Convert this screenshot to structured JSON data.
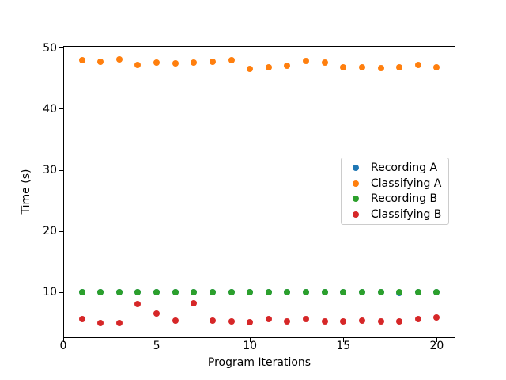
{
  "chart_data": {
    "type": "scatter",
    "title": "",
    "xlabel": "Program Iterations",
    "ylabel": "Time (s)",
    "xlim": [
      0,
      21
    ],
    "ylim": [
      2.5,
      50.4
    ],
    "grid": false,
    "legend_position": "center right",
    "xticks": [
      0,
      5,
      10,
      15,
      20
    ],
    "xtick_labels": [
      "0",
      "5",
      "10",
      "15",
      "20"
    ],
    "yticks": [
      10,
      20,
      30,
      40,
      50
    ],
    "ytick_labels": [
      "10",
      "20",
      "30",
      "40",
      "50"
    ],
    "x": [
      1,
      2,
      3,
      4,
      5,
      6,
      7,
      8,
      9,
      10,
      11,
      12,
      13,
      14,
      15,
      16,
      17,
      18,
      19,
      20
    ],
    "series": [
      {
        "name": "Recording A",
        "color": "#1f77b4",
        "values": [
          10.1,
          10.1,
          10.1,
          10.1,
          10.1,
          10.1,
          10.1,
          10.1,
          10.1,
          10.1,
          10.1,
          10.1,
          10.1,
          10.1,
          10.1,
          10.1,
          10.1,
          9.95,
          10.1,
          10.1
        ]
      },
      {
        "name": "Classifying A",
        "color": "#ff7f0e",
        "values": [
          48.0,
          47.7,
          48.2,
          47.3,
          47.6,
          47.5,
          47.6,
          47.7,
          48.0,
          46.6,
          46.9,
          47.1,
          47.9,
          47.6,
          46.9,
          46.8,
          46.7,
          46.9,
          47.3,
          46.9
        ]
      },
      {
        "name": "Recording B",
        "color": "#2ca02c",
        "values": [
          10.1,
          10.1,
          10.1,
          10.1,
          10.1,
          10.1,
          10.1,
          10.1,
          10.1,
          10.1,
          10.1,
          10.1,
          10.1,
          10.1,
          10.1,
          10.1,
          10.1,
          10.1,
          10.1,
          10.1
        ]
      },
      {
        "name": "Classifying B",
        "color": "#d62728",
        "values": [
          5.7,
          5.0,
          5.0,
          8.1,
          6.5,
          5.4,
          8.2,
          5.4,
          5.3,
          5.1,
          5.7,
          5.2,
          5.6,
          5.3,
          5.3,
          5.4,
          5.3,
          5.25,
          5.6,
          5.9
        ]
      }
    ]
  }
}
